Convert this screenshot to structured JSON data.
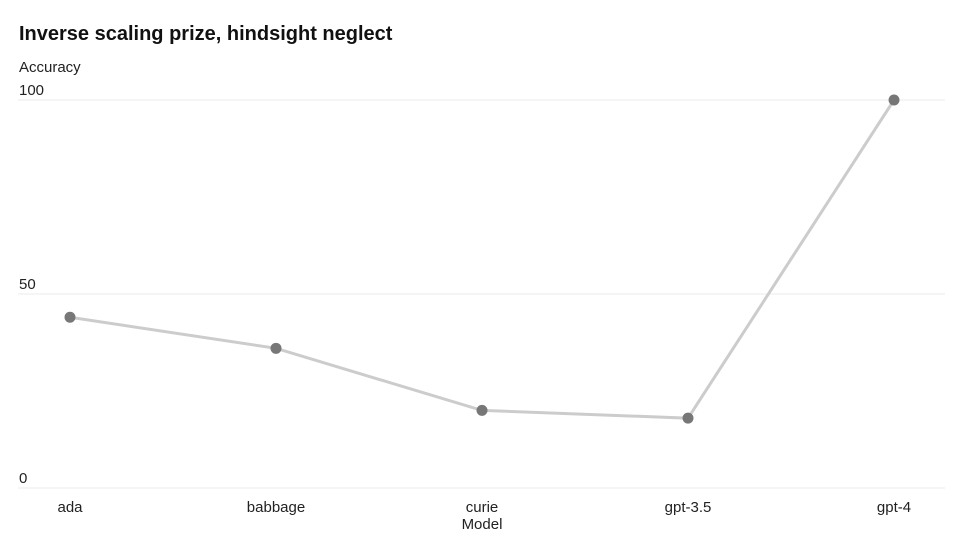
{
  "chart_data": {
    "type": "line",
    "title": "Inverse scaling prize, hindsight neglect",
    "ylabel": "Accuracy",
    "xlabel": "Model",
    "categories": [
      "ada",
      "babbage",
      "curie",
      "gpt-3.5",
      "gpt-4"
    ],
    "series": [
      {
        "values": [
          44,
          36,
          20,
          18,
          100
        ],
        "color": "#cccccc",
        "marker_color": "#777777"
      }
    ],
    "ylim": [
      0,
      100
    ],
    "yticks": [
      0,
      50,
      100
    ],
    "grid": true
  }
}
